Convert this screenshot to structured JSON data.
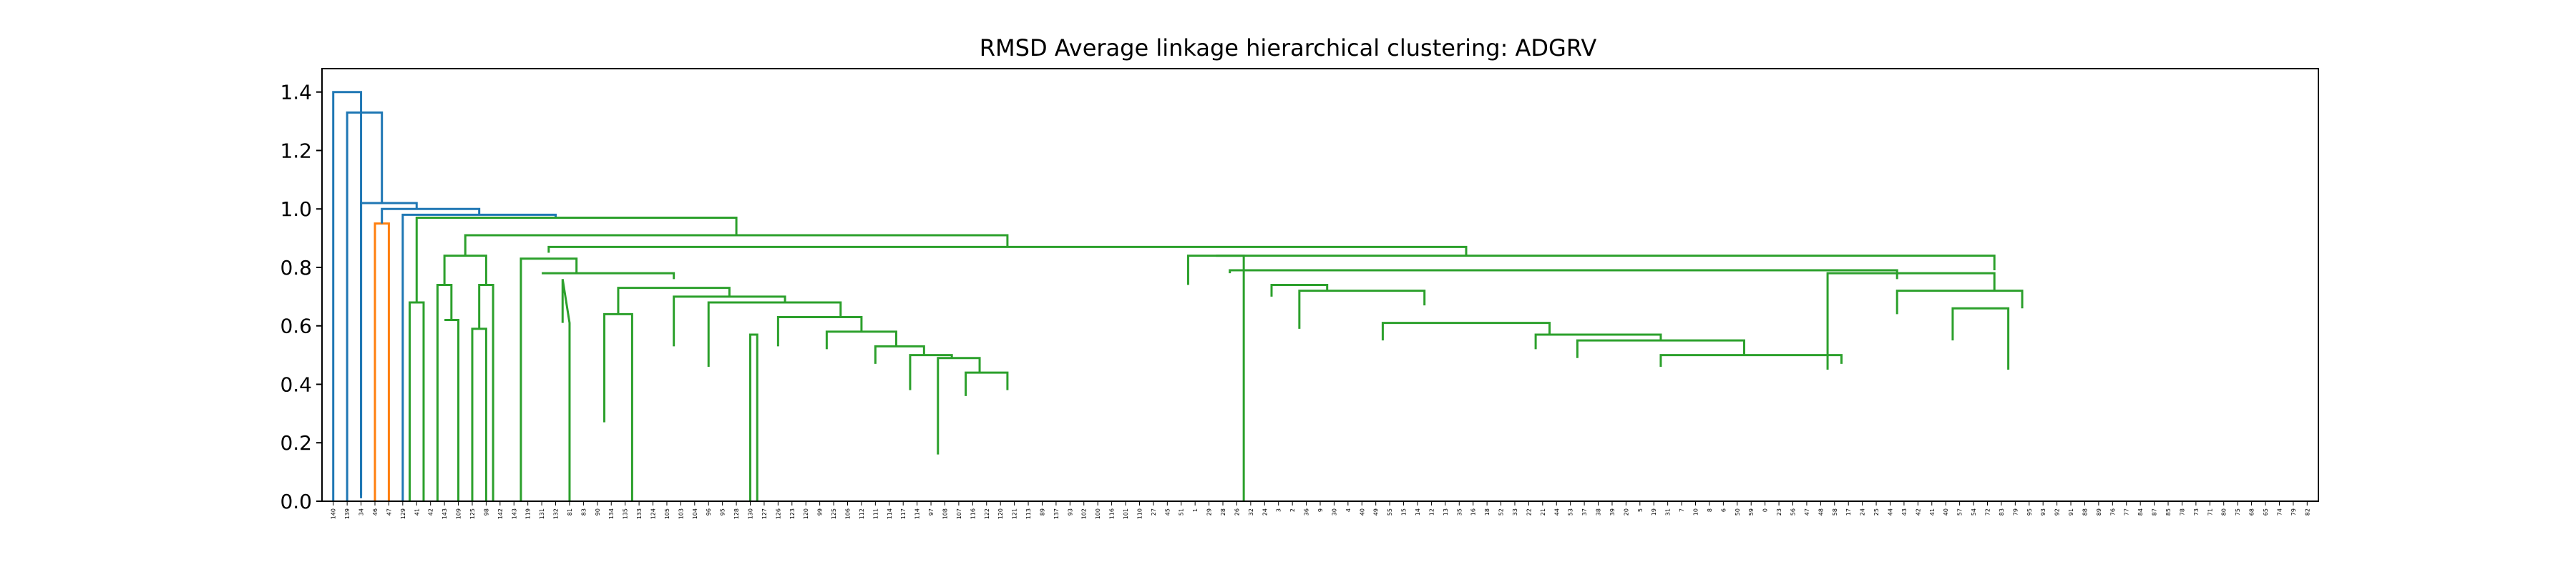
{
  "chart_data": {
    "type": "dendrogram",
    "title": "RMSD Average linkage hierarchical clustering: ADGRV",
    "xlabel": "",
    "ylabel": "",
    "ylim": [
      0,
      1.48
    ],
    "yticks": [
      "0.0",
      "0.2",
      "0.4",
      "0.6",
      "0.8",
      "1.0",
      "1.2",
      "1.4"
    ],
    "grid": false,
    "colors": {
      "above_threshold": "#1f77b4",
      "cluster_orange": "#ff7f0e",
      "cluster_green": "#2ca02c"
    },
    "leaves": [
      "140",
      "139",
      "34",
      "46",
      "47",
      "129",
      "41",
      "42",
      "143",
      "109",
      "125",
      "98",
      "142",
      "143",
      "119",
      "131",
      "132",
      "81",
      "83",
      "90",
      "134",
      "135",
      "133",
      "124",
      "105",
      "103",
      "104",
      "96",
      "95",
      "128",
      "130",
      "127",
      "126",
      "123",
      "120",
      "99",
      "125",
      "106",
      "112",
      "111",
      "114",
      "117",
      "114",
      "97",
      "108",
      "107",
      "116",
      "122",
      "120",
      "121",
      "113",
      "89",
      "137",
      "93",
      "102",
      "100",
      "116",
      "101",
      "110",
      "27",
      "45",
      "51",
      "1",
      "29",
      "28",
      "26",
      "32",
      "24",
      "3",
      "2",
      "36",
      "9",
      "30",
      "4",
      "40",
      "49",
      "55",
      "15",
      "14",
      "12",
      "13",
      "35",
      "16",
      "18",
      "52",
      "33",
      "22",
      "21",
      "44",
      "53",
      "37",
      "38",
      "39",
      "20",
      "5",
      "19",
      "31",
      "7",
      "10",
      "8",
      "6",
      "50",
      "59",
      "0",
      "23",
      "56",
      "47",
      "48",
      "58",
      "17",
      "24",
      "25",
      "44",
      "43",
      "42",
      "41",
      "40",
      "57",
      "54",
      "72",
      "83",
      "79",
      "95",
      "93",
      "92",
      "91",
      "88",
      "89",
      "76",
      "77",
      "84",
      "87",
      "85",
      "78",
      "73",
      "71",
      "80",
      "75",
      "68",
      "65",
      "74",
      "79",
      "82"
    ],
    "links": [
      {
        "color": "#1f77b4",
        "x": [
          5,
          5,
          25,
          25
        ],
        "y": [
          0,
          1.4,
          1.4,
          0.02
        ]
      },
      {
        "color": "#1f77b4",
        "x": [
          15,
          15,
          40,
          40
        ],
        "y": [
          0,
          1.33,
          1.33,
          1.02
        ]
      },
      {
        "color": "#1f77b4",
        "x": [
          25,
          25,
          65,
          65
        ],
        "y": [
          0.01,
          1.02,
          1.02,
          1.0
        ]
      },
      {
        "color": "#ff7f0e",
        "x": [
          35,
          35,
          45,
          45
        ],
        "y": [
          0,
          0.95,
          0.95,
          0
        ]
      },
      {
        "color": "#1f77b4",
        "x": [
          40,
          40,
          110,
          110
        ],
        "y": [
          0.95,
          1.0,
          1.0,
          0.98
        ]
      },
      {
        "color": "#1f77b4",
        "x": [
          55,
          55,
          165,
          165
        ],
        "y": [
          0,
          0.98,
          0.98,
          0.97
        ]
      },
      {
        "color": "#2ca02c",
        "x": [
          65,
          65,
          295,
          295
        ],
        "y": [
          0.68,
          0.97,
          0.97,
          0.91
        ]
      },
      {
        "color": "#2ca02c",
        "x": [
          60,
          60,
          70,
          70
        ],
        "y": [
          0,
          0.68,
          0.68,
          0
        ]
      },
      {
        "color": "#2ca02c",
        "x": [
          100,
          100,
          490,
          490
        ],
        "y": [
          0.84,
          0.91,
          0.91,
          0.87
        ]
      },
      {
        "color": "#2ca02c",
        "x": [
          85,
          85,
          115,
          115
        ],
        "y": [
          0.74,
          0.84,
          0.84,
          0.74
        ]
      },
      {
        "color": "#2ca02c",
        "x": [
          80,
          80,
          90,
          90
        ],
        "y": [
          0,
          0.74,
          0.74,
          0.62
        ]
      },
      {
        "color": "#2ca02c",
        "x": [
          85,
          85,
          95,
          95
        ],
        "y": [
          0.62,
          0.62,
          0.62,
          0
        ]
      },
      {
        "color": "#2ca02c",
        "x": [
          110,
          110,
          120,
          120
        ],
        "y": [
          0.59,
          0.74,
          0.74,
          0
        ]
      },
      {
        "color": "#2ca02c",
        "x": [
          105,
          105,
          115,
          115
        ],
        "y": [
          0,
          0.59,
          0.59,
          0
        ]
      },
      {
        "color": "#2ca02c",
        "x": [
          160,
          160,
          820,
          820
        ],
        "y": [
          0.85,
          0.87,
          0.87,
          0.84
        ]
      },
      {
        "color": "#2ca02c",
        "x": [
          140,
          140,
          180,
          180
        ],
        "y": [
          0.0,
          0.83,
          0.83,
          0.78
        ]
      },
      {
        "color": "#2ca02c",
        "x": [
          155,
          155,
          250,
          250
        ],
        "y": [
          0.78,
          0.78,
          0.78,
          0.76
        ]
      },
      {
        "color": "#2ca02c",
        "x": [
          170,
          170,
          175,
          175
        ],
        "y": [
          0.61,
          0.76,
          0.61,
          0
        ]
      },
      {
        "color": "#2ca02c",
        "x": [
          210,
          210,
          290,
          290
        ],
        "y": [
          0.64,
          0.73,
          0.73,
          0.7
        ]
      },
      {
        "color": "#2ca02c",
        "x": [
          200,
          200,
          220,
          220
        ],
        "y": [
          0.27,
          0.64,
          0.64,
          0.0
        ]
      },
      {
        "color": "#2ca02c",
        "x": [
          250,
          250,
          330,
          330
        ],
        "y": [
          0.53,
          0.7,
          0.7,
          0.68
        ]
      },
      {
        "color": "#2ca02c",
        "x": [
          275,
          275,
          370,
          370
        ],
        "y": [
          0.46,
          0.68,
          0.68,
          0.63
        ]
      },
      {
        "color": "#2ca02c",
        "x": [
          305,
          305,
          310,
          310
        ],
        "y": [
          0,
          0.57,
          0.57,
          0
        ]
      },
      {
        "color": "#2ca02c",
        "x": [
          325,
          325,
          385,
          385
        ],
        "y": [
          0.53,
          0.63,
          0.63,
          0.58
        ]
      },
      {
        "color": "#2ca02c",
        "x": [
          360,
          360,
          410,
          410
        ],
        "y": [
          0.52,
          0.58,
          0.58,
          0.53
        ]
      },
      {
        "color": "#2ca02c",
        "x": [
          395,
          395,
          430,
          430
        ],
        "y": [
          0.47,
          0.53,
          0.53,
          0.5
        ]
      },
      {
        "color": "#2ca02c",
        "x": [
          420,
          420,
          450,
          450
        ],
        "y": [
          0.38,
          0.5,
          0.5,
          0.49
        ]
      },
      {
        "color": "#2ca02c",
        "x": [
          440,
          440,
          470,
          470
        ],
        "y": [
          0.16,
          0.49,
          0.49,
          0.44
        ]
      },
      {
        "color": "#2ca02c",
        "x": [
          460,
          460,
          490,
          490
        ],
        "y": [
          0.36,
          0.44,
          0.44,
          0.38
        ]
      },
      {
        "color": "#2ca02c",
        "x": [
          640,
          640,
          1200,
          1200
        ],
        "y": [
          0.84,
          0.84,
          0.84,
          0.79
        ]
      },
      {
        "color": "#2ca02c",
        "x": [
          620,
          620,
          660,
          660
        ],
        "y": [
          0.74,
          0.84,
          0.84,
          0.0
        ]
      },
      {
        "color": "#2ca02c",
        "x": [
          650,
          650,
          1130,
          1130
        ],
        "y": [
          0.78,
          0.79,
          0.79,
          0.76
        ]
      },
      {
        "color": "#2ca02c",
        "x": [
          680,
          680,
          720,
          720
        ],
        "y": [
          0.7,
          0.74,
          0.74,
          0.72
        ]
      },
      {
        "color": "#2ca02c",
        "x": [
          700,
          700,
          790,
          790
        ],
        "y": [
          0.59,
          0.72,
          0.72,
          0.67
        ]
      },
      {
        "color": "#2ca02c",
        "x": [
          760,
          760,
          880,
          880
        ],
        "y": [
          0.55,
          0.61,
          0.61,
          0.57
        ]
      },
      {
        "color": "#2ca02c",
        "x": [
          870,
          870,
          960,
          960
        ],
        "y": [
          0.52,
          0.57,
          0.57,
          0.55
        ]
      },
      {
        "color": "#2ca02c",
        "x": [
          900,
          900,
          1020,
          1020
        ],
        "y": [
          0.49,
          0.55,
          0.55,
          0.5
        ]
      },
      {
        "color": "#2ca02c",
        "x": [
          960,
          960,
          1090,
          1090
        ],
        "y": [
          0.46,
          0.5,
          0.5,
          0.47
        ]
      },
      {
        "color": "#2ca02c",
        "x": [
          1080,
          1080,
          1200,
          1200
        ],
        "y": [
          0.45,
          0.78,
          0.78,
          0.72
        ]
      },
      {
        "color": "#2ca02c",
        "x": [
          1130,
          1130,
          1220,
          1220
        ],
        "y": [
          0.64,
          0.72,
          0.72,
          0.66
        ]
      },
      {
        "color": "#2ca02c",
        "x": [
          1170,
          1170,
          1210,
          1210
        ],
        "y": [
          0.55,
          0.66,
          0.66,
          0.45
        ]
      }
    ]
  }
}
